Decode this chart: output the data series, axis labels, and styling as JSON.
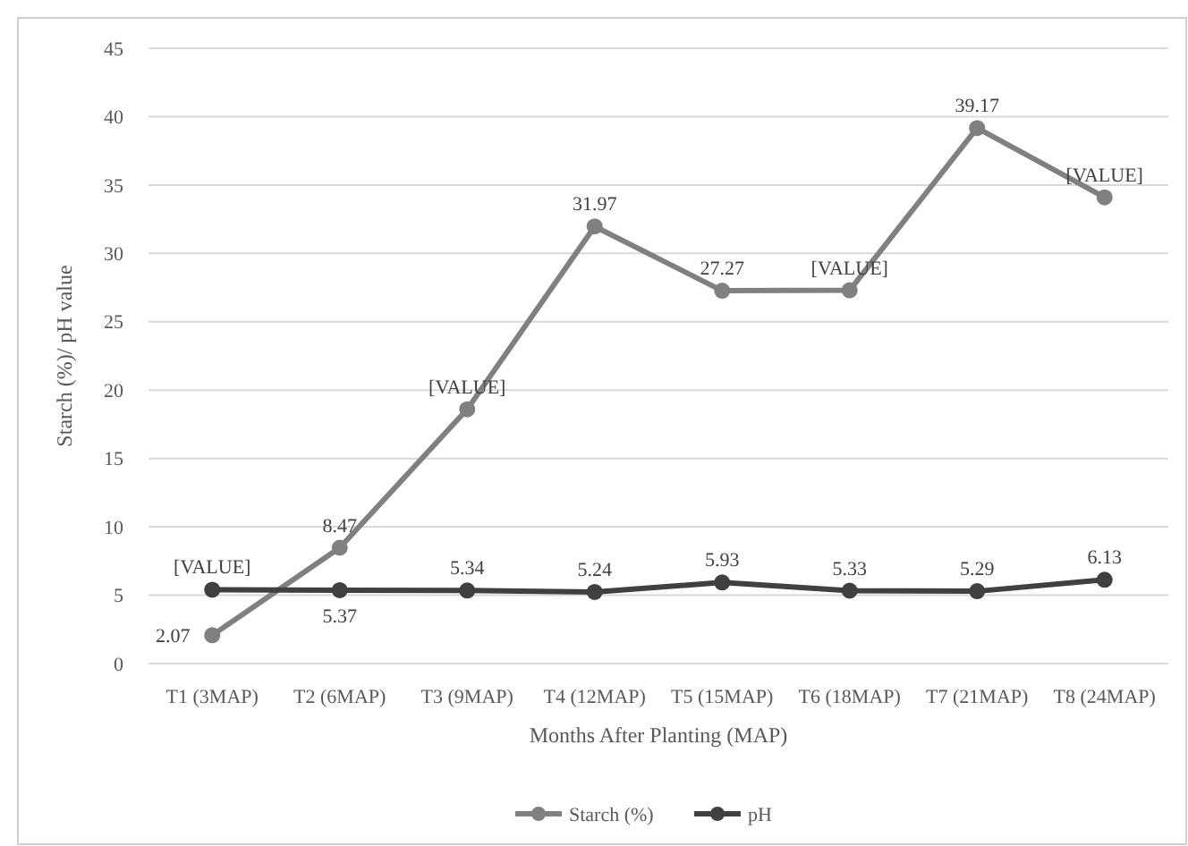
{
  "chart_data": {
    "type": "line",
    "xlabel": "Months After Planting (MAP)",
    "ylabel": "Starch (%)/ pH value",
    "categories": [
      "T1 (3MAP)",
      "T2 (6MAP)",
      "T3 (9MAP)",
      "T4 (12MAP)",
      "T5 (15MAP)",
      "T6 (18MAP)",
      "T7 (21MAP)",
      "T8 (24MAP)"
    ],
    "series": [
      {
        "name": "Starch (%)",
        "color": "#808080",
        "values": [
          2.07,
          8.47,
          18.6,
          31.97,
          27.27,
          27.3,
          39.17,
          34.1
        ],
        "value_labels": [
          "2.07",
          "8.47",
          "[VALUE]",
          "31.97",
          "27.27",
          "[VALUE]",
          "39.17",
          "[VALUE]"
        ]
      },
      {
        "name": "pH",
        "color": "#404040",
        "values": [
          5.4,
          5.37,
          5.34,
          5.24,
          5.93,
          5.33,
          5.29,
          6.13
        ],
        "value_labels": [
          "[VALUE]",
          "5.37",
          "5.34",
          "5.24",
          "5.93",
          "5.33",
          "5.29",
          "6.13"
        ]
      }
    ],
    "ylim": [
      0,
      45
    ],
    "yticks": [
      0,
      5,
      10,
      15,
      20,
      25,
      30,
      35,
      40,
      45
    ],
    "grid": "y",
    "legend": "bottom",
    "marker": "circle",
    "line_style": "solid"
  }
}
